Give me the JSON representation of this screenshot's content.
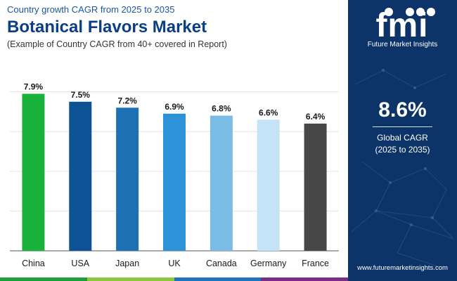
{
  "header": {
    "kicker": "Country growth CAGR from 2025 to 2035",
    "title": "Botanical Flavors Market",
    "subtitle": "(Example of Country CAGR from 40+ covered in Report)"
  },
  "chart_data": {
    "type": "bar",
    "categories": [
      "China",
      "USA",
      "Japan",
      "UK",
      "Canada",
      "Germany",
      "France"
    ],
    "values": [
      7.9,
      7.5,
      7.2,
      6.9,
      6.8,
      6.6,
      6.4
    ],
    "data_labels": [
      "7.9%",
      "7.5%",
      "7.2%",
      "6.9%",
      "6.8%",
      "6.6%",
      "6.4%"
    ],
    "bar_colors": [
      "#19b33b",
      "#0c5294",
      "#1e70b5",
      "#2d92d8",
      "#7bbce6",
      "#c5e3f6",
      "#474747"
    ],
    "unit": "%",
    "ylim": [
      0,
      8.2
    ],
    "gridlines": [
      0,
      2,
      4,
      6,
      8
    ],
    "grid": true,
    "xlabel": "",
    "ylabel": ""
  },
  "sidepanel": {
    "logo_text": "fmi",
    "logo_caption": "Future Market Insights",
    "cagr_value": "8.6%",
    "cagr_label_line1": "Global CAGR",
    "cagr_label_line2": "(2025 to 2035)",
    "website": "www.futuremarketinsights.com",
    "background": "#0c3468"
  },
  "bottom_strip_colors": [
    "#1f9d3a",
    "#8dc63f",
    "#1e73be",
    "#7a2d86"
  ]
}
